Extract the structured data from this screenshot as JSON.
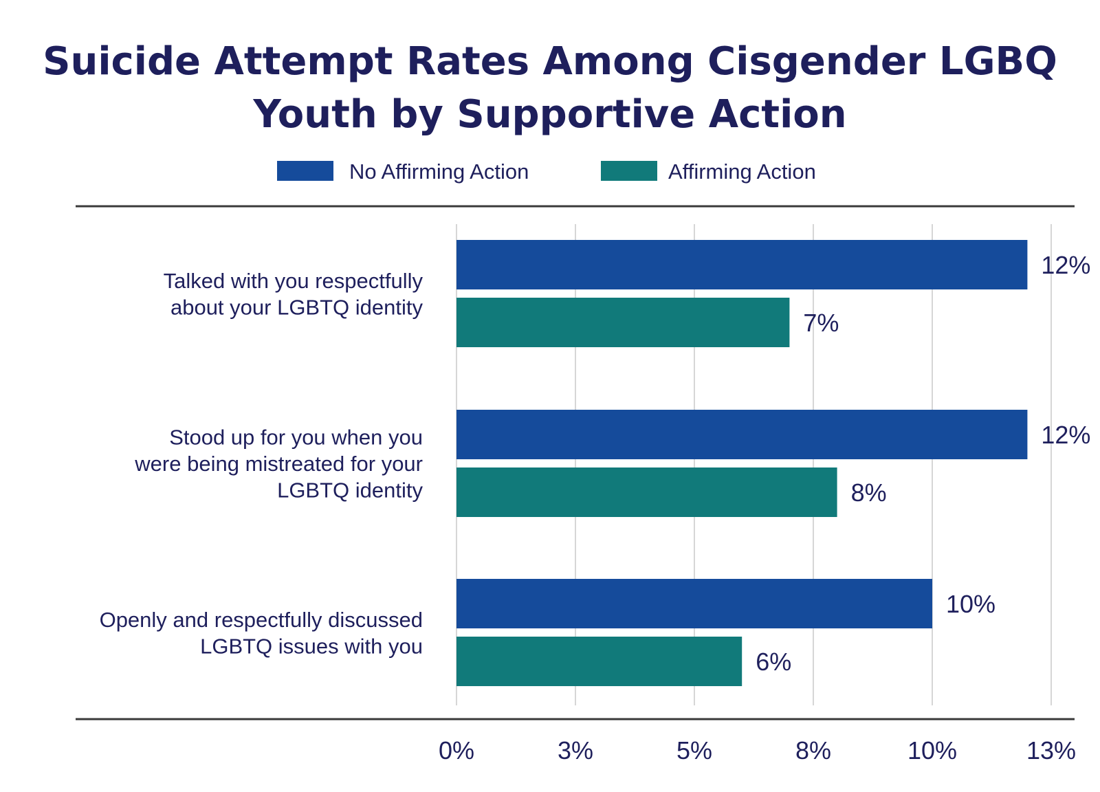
{
  "chart_data": {
    "type": "bar",
    "orientation": "horizontal",
    "title_lines": [
      "Suicide Attempt Rates Among Cisgender LGBQ",
      "Youth by Supportive Action"
    ],
    "categories": [
      [
        "Talked with you respectfully",
        "about your LGBTQ identity"
      ],
      [
        "Stood up for you when you",
        "were being mistreated for your",
        "LGBTQ identity"
      ],
      [
        "Openly and respectfully discussed",
        "LGBTQ issues with you"
      ]
    ],
    "series": [
      {
        "name": "No Affirming Action",
        "color": "#154b9b",
        "values": [
          12,
          12,
          10
        ],
        "labels": [
          "12%",
          "12%",
          "10%"
        ]
      },
      {
        "name": "Affirming Action",
        "color": "#117a7a",
        "values": [
          7,
          8,
          6
        ],
        "labels": [
          "7%",
          "8%",
          "6%"
        ]
      }
    ],
    "xlim": [
      0,
      12.5
    ],
    "ticks": [
      {
        "value": 0,
        "label": "0%"
      },
      {
        "value": 2.5,
        "label": "3%"
      },
      {
        "value": 5,
        "label": "5%"
      },
      {
        "value": 7.5,
        "label": "8%"
      },
      {
        "value": 10,
        "label": "10%"
      },
      {
        "value": 12.5,
        "label": "13%"
      }
    ],
    "grid": true,
    "legend_position": "top-center",
    "text_color": "#1e1f5c"
  }
}
